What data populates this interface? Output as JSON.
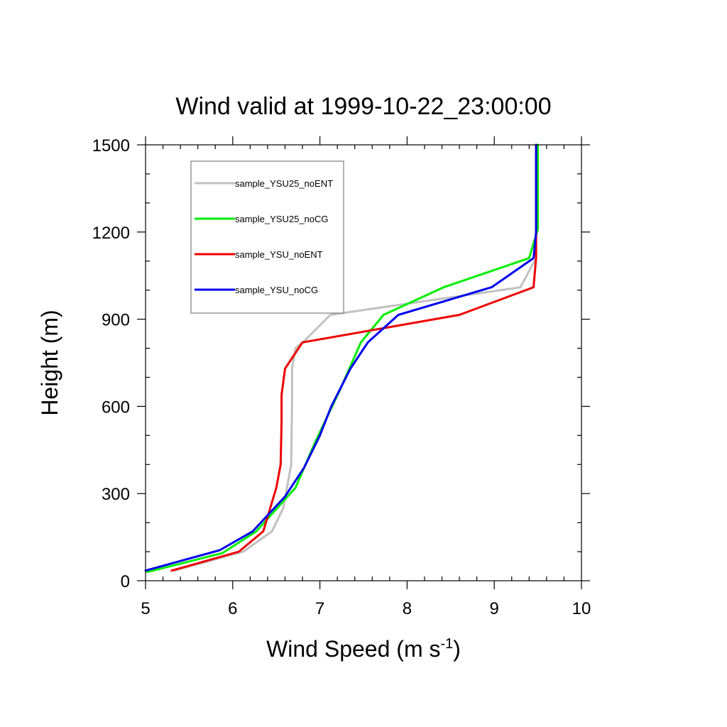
{
  "chart_data": {
    "type": "line",
    "title": "Wind valid at 1999-10-22_23:00:00",
    "xlabel": "Wind Speed (m s",
    "xlabel_sup": "-1",
    "xlabel_end": ")",
    "ylabel": "Height (m)",
    "xlim": [
      5,
      10
    ],
    "ylim": [
      0,
      1500
    ],
    "xticks": [
      5,
      6,
      7,
      8,
      9,
      10
    ],
    "yticks": [
      0,
      300,
      600,
      900,
      1200,
      1500
    ],
    "grid": false,
    "legend_position": "top-left",
    "series": [
      {
        "name": "sample_YSU25_noENT",
        "color": "#c0c0c0",
        "x": [
          5.33,
          6.12,
          6.45,
          6.58,
          6.67,
          6.68,
          6.68,
          6.72,
          6.82,
          7.12,
          9.3,
          9.48,
          9.48
        ],
        "y": [
          35,
          100,
          170,
          250,
          400,
          600,
          730,
          800,
          825,
          915,
          1010,
          1110,
          1500
        ]
      },
      {
        "name": "sample_YSU25_noCG",
        "color": "#00ee00",
        "x": [
          5.02,
          5.88,
          6.27,
          6.72,
          6.95,
          7.22,
          7.47,
          7.73,
          8.42,
          9.4,
          9.5,
          9.5
        ],
        "y": [
          30,
          95,
          170,
          320,
          480,
          650,
          820,
          915,
          1010,
          1110,
          1210,
          1500
        ]
      },
      {
        "name": "sample_YSU_noENT",
        "color": "#ee0000",
        "x": [
          5.3,
          6.07,
          6.35,
          6.5,
          6.55,
          6.56,
          6.56,
          6.6,
          6.8,
          8.6,
          9.45,
          9.48,
          9.48
        ],
        "y": [
          35,
          100,
          170,
          320,
          400,
          550,
          640,
          730,
          820,
          915,
          1010,
          1110,
          1500
        ]
      },
      {
        "name": "sample_YSU_noCG",
        "color": "#0000ee",
        "x": [
          5.0,
          5.85,
          6.23,
          6.6,
          6.82,
          7.0,
          7.13,
          7.35,
          7.55,
          7.9,
          8.97,
          9.45,
          9.48,
          9.48
        ],
        "y": [
          35,
          105,
          170,
          290,
          390,
          500,
          600,
          730,
          820,
          915,
          1010,
          1110,
          1200,
          1500
        ]
      }
    ]
  }
}
